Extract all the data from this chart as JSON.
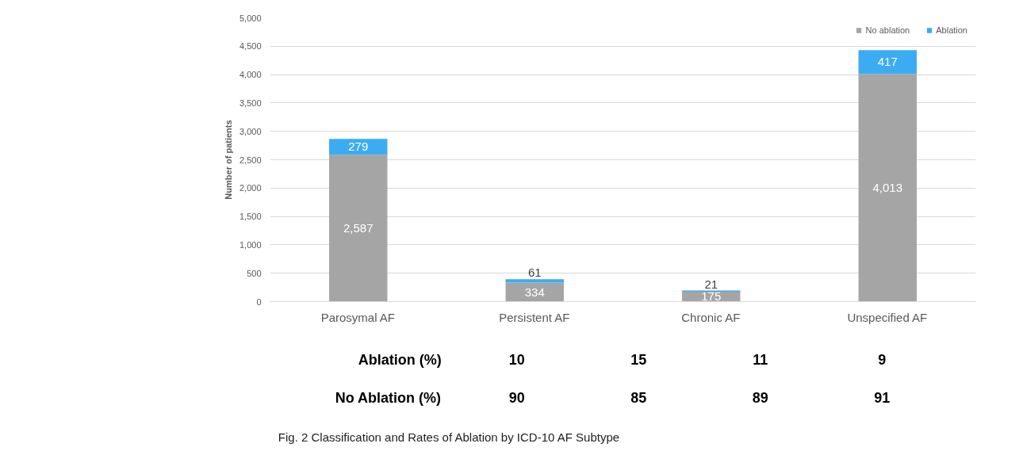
{
  "chart_data": {
    "type": "bar",
    "stacked": true,
    "categories": [
      "Parosymal AF",
      "Persistent AF",
      "Chronic AF",
      "Unspecified AF"
    ],
    "series": [
      {
        "name": "No ablation",
        "color": "#a5a5a5",
        "values": [
          2587,
          334,
          175,
          4013
        ],
        "value_labels": [
          "2,587",
          "334",
          "175",
          "4,013"
        ]
      },
      {
        "name": "Ablation",
        "color": "#3cacf2",
        "values": [
          279,
          61,
          21,
          417
        ],
        "value_labels": [
          "279",
          "61",
          "21",
          "417"
        ]
      }
    ],
    "ylabel": "Number of patients",
    "ylim": [
      0,
      5000
    ],
    "yticks": [
      {
        "value": 0,
        "label": "0"
      },
      {
        "value": 500,
        "label": "500"
      },
      {
        "value": 1000,
        "label": "1,000"
      },
      {
        "value": 1500,
        "label": "1,500"
      },
      {
        "value": 2000,
        "label": "2,000"
      },
      {
        "value": 2500,
        "label": "2,500"
      },
      {
        "value": 3000,
        "label": "3,000"
      },
      {
        "value": 3500,
        "label": "3,500"
      },
      {
        "value": 4000,
        "label": "4,000"
      },
      {
        "value": 4500,
        "label": "4,500"
      },
      {
        "value": 5000,
        "label": "5,000"
      }
    ],
    "grid": "y",
    "legend": "top right",
    "annotations": [
      "Ablation (%)",
      "10",
      "15",
      "11",
      "9",
      "No Ablation (%)",
      "90",
      "85",
      "89",
      "91",
      "Fig. 2 Classification and Rates of Ablation by ICD-10 AF Subtype"
    ]
  }
}
